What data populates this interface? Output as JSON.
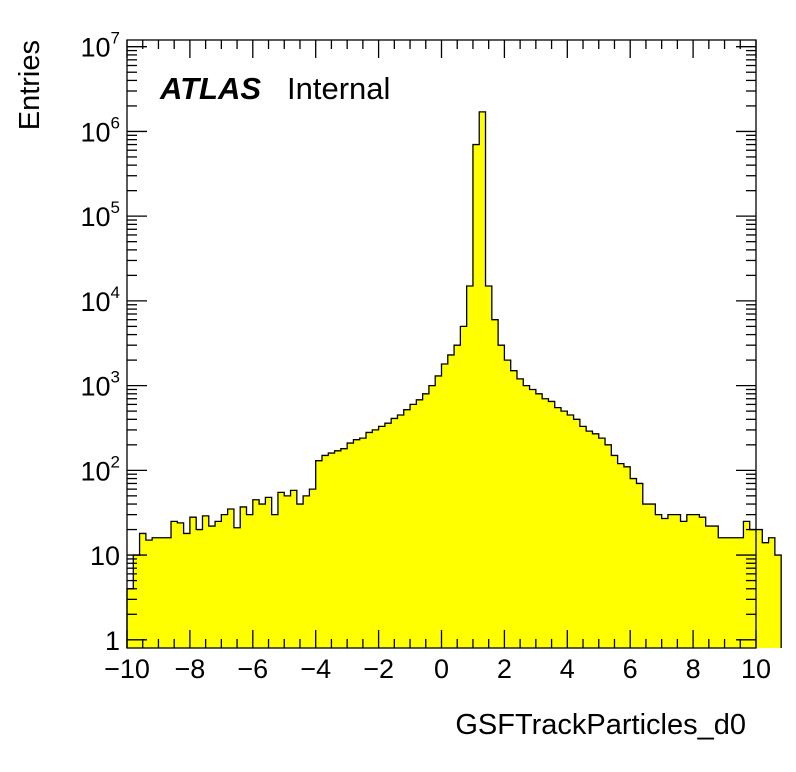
{
  "chart_data": {
    "type": "histogram",
    "title": "",
    "xlabel": "GSFTrackParticles_d0",
    "ylabel": "Entries",
    "xlim": [
      -10,
      10
    ],
    "ylim": [
      0.8,
      12000000
    ],
    "log_y": true,
    "grid": false,
    "fill_color": "#ffff00",
    "line_color": "#000000",
    "label_main": "ATLAS",
    "label_sub": "Internal",
    "bin_width": 0.2,
    "x_ticks": [
      -10,
      -8,
      -6,
      -4,
      -2,
      0,
      2,
      4,
      6,
      8,
      10
    ],
    "x_tick_labels": [
      "−10",
      "−8",
      "−6",
      "−4",
      "−2",
      "0",
      "2",
      "4",
      "6",
      "8",
      "10"
    ],
    "y_ticks": [
      {
        "value": 1,
        "base": "1",
        "exp": ""
      },
      {
        "value": 10,
        "base": "10",
        "exp": ""
      },
      {
        "value": 100,
        "base": "10",
        "exp": "2"
      },
      {
        "value": 1000,
        "base": "10",
        "exp": "3"
      },
      {
        "value": 10000,
        "base": "10",
        "exp": "4"
      },
      {
        "value": 100000,
        "base": "10",
        "exp": "5"
      },
      {
        "value": 1000000,
        "base": "10",
        "exp": "6"
      },
      {
        "value": 10000000,
        "base": "10",
        "exp": "7"
      }
    ],
    "values": [
      4,
      10,
      18,
      15,
      16,
      16,
      16,
      25,
      24,
      18,
      28,
      20,
      29,
      22,
      25,
      30,
      35,
      21,
      37,
      30,
      45,
      40,
      48,
      30,
      55,
      50,
      58,
      40,
      50,
      60,
      130,
      150,
      160,
      170,
      180,
      210,
      230,
      240,
      280,
      300,
      330,
      360,
      410,
      450,
      520,
      600,
      680,
      800,
      1000,
      1300,
      1800,
      2300,
      3000,
      5000,
      15000,
      700000,
      1700000,
      15000,
      6000,
      3000,
      2000,
      1500,
      1200,
      1000,
      900,
      800,
      700,
      650,
      550,
      500,
      450,
      400,
      330,
      290,
      270,
      240,
      200,
      150,
      120,
      110,
      80,
      70,
      40,
      40,
      30,
      27,
      30,
      30,
      25,
      30,
      30,
      28,
      22,
      22,
      16,
      16,
      16,
      16,
      25,
      20,
      20,
      14,
      16,
      10
    ]
  }
}
